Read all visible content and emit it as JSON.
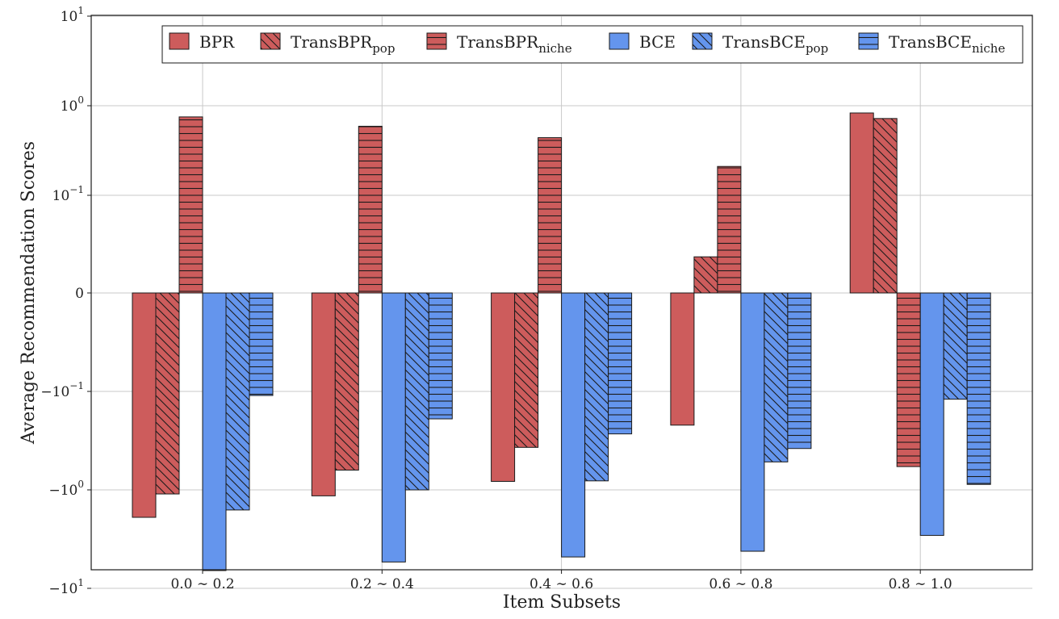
{
  "chart_data": {
    "type": "bar",
    "scale": "symlog",
    "xlabel": "Item Subsets",
    "ylabel": "Average Recommendation Scores",
    "categories": [
      "0.0 ∼ 0.2",
      "0.2 ∼ 0.4",
      "0.4 ∼ 0.6",
      "0.6 ∼ 0.8",
      "0.8 ∼ 1.0"
    ],
    "ylim": [
      -10,
      10
    ],
    "yticks": [
      {
        "value": 10,
        "base": "10",
        "exp": "1"
      },
      {
        "value": 1,
        "base": "10",
        "exp": "0"
      },
      {
        "value": 0.1,
        "base": "10",
        "exp": "−1"
      },
      {
        "value": 0,
        "base": "0",
        "exp": ""
      },
      {
        "value": -0.1,
        "base": "−10",
        "exp": "−1"
      },
      {
        "value": -1,
        "base": "−10",
        "exp": "0"
      },
      {
        "value": -10,
        "base": "−10",
        "exp": "1"
      }
    ],
    "series": [
      {
        "name": "BPR",
        "base": "BPR",
        "sub": "",
        "color": "#cd5c5c",
        "hatch": "none",
        "values": [
          -1.9,
          -1.15,
          -0.82,
          -0.22,
          0.83
        ]
      },
      {
        "name": "TransBPR_pop",
        "base": "TransBPR",
        "sub": "pop",
        "color": "#cd5c5c",
        "hatch": "diag",
        "values": [
          -1.1,
          -0.63,
          -0.37,
          0.037,
          0.72
        ]
      },
      {
        "name": "TransBPR_niche",
        "base": "TransBPR",
        "sub": "niche",
        "color": "#cd5c5c",
        "hatch": "horiz",
        "values": [
          0.75,
          0.59,
          0.44,
          0.21,
          -0.58
        ]
      },
      {
        "name": "BCE",
        "base": "BCE",
        "sub": "",
        "color": "#6495ed",
        "hatch": "none",
        "values": [
          -6.6,
          -5.4,
          -4.8,
          -4.2,
          -2.9
        ]
      },
      {
        "name": "TransBCE_pop",
        "base": "TransBCE",
        "sub": "pop",
        "color": "#6495ed",
        "hatch": "diag",
        "values": [
          -1.6,
          -1.0,
          -0.81,
          -0.52,
          -0.12
        ]
      },
      {
        "name": "TransBCE_niche",
        "base": "TransBCE",
        "sub": "niche",
        "color": "#6495ed",
        "hatch": "horiz",
        "values": [
          -0.11,
          -0.19,
          -0.27,
          -0.38,
          -0.88
        ]
      }
    ]
  }
}
